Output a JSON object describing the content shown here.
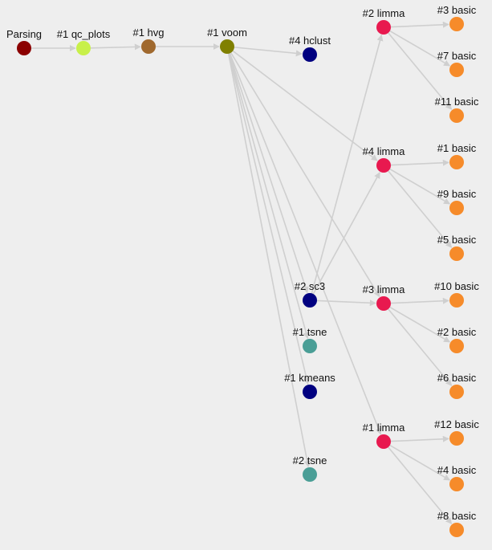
{
  "colors": {
    "background": "#eeeeee",
    "edge": "#cfcfcf",
    "parsing": "#8b0000",
    "qc_plots": "#c8f04a",
    "hvg": "#a0692e",
    "voom": "#808000",
    "hclust": "#000080",
    "sc3": "#000080",
    "kmeans": "#000080",
    "tsne": "#4a9e96",
    "limma": "#e8194f",
    "basic": "#f68b2a"
  },
  "nodes": [
    {
      "id": "parsing",
      "label": "Parsing",
      "kind": "parsing"
    },
    {
      "id": "qc1",
      "label": "#1 qc_plots",
      "kind": "qc_plots"
    },
    {
      "id": "hvg1",
      "label": "#1 hvg",
      "kind": "hvg"
    },
    {
      "id": "voom1",
      "label": "#1 voom",
      "kind": "voom"
    },
    {
      "id": "hclust4",
      "label": "#4 hclust",
      "kind": "hclust"
    },
    {
      "id": "sc3_2",
      "label": "#2 sc3",
      "kind": "sc3"
    },
    {
      "id": "tsne1",
      "label": "#1 tsne",
      "kind": "tsne"
    },
    {
      "id": "kmeans1",
      "label": "#1 kmeans",
      "kind": "kmeans"
    },
    {
      "id": "tsne2",
      "label": "#2 tsne",
      "kind": "tsne"
    },
    {
      "id": "limma2",
      "label": "#2 limma",
      "kind": "limma"
    },
    {
      "id": "limma4",
      "label": "#4 limma",
      "kind": "limma"
    },
    {
      "id": "limma3",
      "label": "#3 limma",
      "kind": "limma"
    },
    {
      "id": "limma1",
      "label": "#1 limma",
      "kind": "limma"
    },
    {
      "id": "basic3",
      "label": "#3 basic",
      "kind": "basic"
    },
    {
      "id": "basic7",
      "label": "#7 basic",
      "kind": "basic"
    },
    {
      "id": "basic11",
      "label": "#11 basic",
      "kind": "basic"
    },
    {
      "id": "basic1",
      "label": "#1 basic",
      "kind": "basic"
    },
    {
      "id": "basic9",
      "label": "#9 basic",
      "kind": "basic"
    },
    {
      "id": "basic5",
      "label": "#5 basic",
      "kind": "basic"
    },
    {
      "id": "basic10",
      "label": "#10 basic",
      "kind": "basic"
    },
    {
      "id": "basic2",
      "label": "#2 basic",
      "kind": "basic"
    },
    {
      "id": "basic6",
      "label": "#6 basic",
      "kind": "basic"
    },
    {
      "id": "basic12",
      "label": "#12 basic",
      "kind": "basic"
    },
    {
      "id": "basic4",
      "label": "#4 basic",
      "kind": "basic"
    },
    {
      "id": "basic8",
      "label": "#8 basic",
      "kind": "basic"
    }
  ],
  "edges": [
    [
      "parsing",
      "qc1"
    ],
    [
      "qc1",
      "hvg1"
    ],
    [
      "hvg1",
      "voom1"
    ],
    [
      "voom1",
      "hclust4"
    ],
    [
      "voom1",
      "limma4"
    ],
    [
      "voom1",
      "sc3_2"
    ],
    [
      "voom1",
      "tsne1"
    ],
    [
      "voom1",
      "kmeans1"
    ],
    [
      "voom1",
      "tsne2"
    ],
    [
      "voom1",
      "limma3"
    ],
    [
      "voom1",
      "limma1"
    ],
    [
      "sc3_2",
      "limma2"
    ],
    [
      "sc3_2",
      "limma4"
    ],
    [
      "sc3_2",
      "limma3"
    ],
    [
      "limma2",
      "basic3"
    ],
    [
      "limma2",
      "basic7"
    ],
    [
      "limma2",
      "basic11"
    ],
    [
      "limma4",
      "basic1"
    ],
    [
      "limma4",
      "basic9"
    ],
    [
      "limma4",
      "basic5"
    ],
    [
      "limma3",
      "basic10"
    ],
    [
      "limma3",
      "basic2"
    ],
    [
      "limma3",
      "basic6"
    ],
    [
      "limma1",
      "basic12"
    ],
    [
      "limma1",
      "basic4"
    ],
    [
      "limma1",
      "basic8"
    ]
  ]
}
